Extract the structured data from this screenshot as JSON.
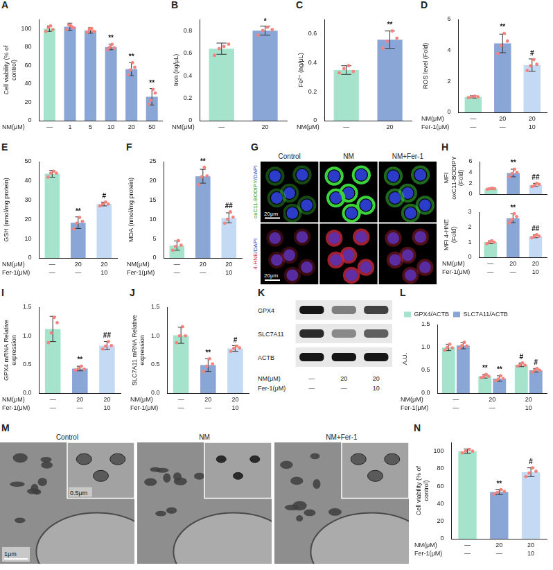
{
  "chart_data": [
    {
      "panel": "A",
      "type": "bar",
      "y_label": "Cell viability (% of control)",
      "categories": [
        [
          "—"
        ],
        [
          "1"
        ],
        [
          "5"
        ],
        [
          "10"
        ],
        [
          "20"
        ],
        [
          "50"
        ]
      ],
      "row_labels": [
        "NM(μM)"
      ],
      "values": [
        100,
        102,
        98,
        80,
        56,
        26
      ],
      "errors": [
        3,
        4,
        3,
        3,
        7,
        9
      ],
      "points": [
        [
          97,
          101,
          103,
          99
        ],
        [
          99,
          104,
          103,
          101
        ],
        [
          96,
          99,
          100,
          97
        ],
        [
          77,
          80,
          83,
          79
        ],
        [
          50,
          55,
          63,
          58
        ],
        [
          18,
          22,
          34,
          30
        ]
      ],
      "annotations": [
        "",
        "",
        "",
        "**",
        "**",
        "**"
      ],
      "colors": [
        "#a6e3cc",
        "#8aa6d6",
        "#8aa6d6",
        "#8aa6d6",
        "#8aa6d6",
        "#8aa6d6"
      ],
      "ylim": [
        0,
        110
      ],
      "yticks": [
        0,
        20,
        40,
        60,
        80,
        100
      ],
      "grid": false
    },
    {
      "panel": "B",
      "type": "bar",
      "y_label": "Iron (ng/μL)",
      "categories": [
        [
          "—"
        ],
        [
          "20"
        ]
      ],
      "row_labels": [
        "NM(μM)"
      ],
      "values": [
        0.64,
        0.8
      ],
      "errors": [
        0.05,
        0.04
      ],
      "points": [
        [
          0.58,
          0.64,
          0.66,
          0.68
        ],
        [
          0.76,
          0.8,
          0.83,
          0.81
        ]
      ],
      "annotations": [
        "",
        "*"
      ],
      "colors": [
        "#a6e3cc",
        "#8aa6d6"
      ],
      "ylim": [
        0,
        0.9
      ],
      "yticks": [
        0,
        0.2,
        0.4,
        0.6,
        0.8
      ],
      "grid": false
    },
    {
      "panel": "C",
      "type": "bar",
      "y_label": "Fe²⁺ (ng/μL)",
      "categories": [
        [
          "—"
        ],
        [
          "20"
        ]
      ],
      "row_labels": [
        "NM(μM)"
      ],
      "values": [
        0.35,
        0.56
      ],
      "errors": [
        0.03,
        0.06
      ],
      "points": [
        [
          0.33,
          0.36,
          0.38,
          0.34
        ],
        [
          0.5,
          0.55,
          0.62,
          0.57
        ]
      ],
      "annotations": [
        "",
        "**"
      ],
      "colors": [
        "#a6e3cc",
        "#8aa6d6"
      ],
      "ylim": [
        0,
        0.7
      ],
      "yticks": [
        0,
        0.2,
        0.4,
        0.6
      ],
      "grid": false
    },
    {
      "panel": "D",
      "type": "bar",
      "y_label": "ROS level (Fold)",
      "categories": [
        [
          "—",
          "—"
        ],
        [
          "20",
          "—"
        ],
        [
          "20",
          "10"
        ]
      ],
      "row_labels": [
        "NM(μM)",
        "Fer-1(μM)"
      ],
      "values": [
        1.0,
        4.45,
        3.05
      ],
      "errors": [
        0.08,
        0.6,
        0.4
      ],
      "points": [
        [
          0.95,
          1.0,
          1.05,
          1.0
        ],
        [
          3.8,
          4.3,
          5.1,
          4.6
        ],
        [
          2.7,
          3.0,
          3.4,
          3.1
        ]
      ],
      "annotations": [
        "",
        "**",
        "#"
      ],
      "colors": [
        "#a6e3cc",
        "#8aa6d6",
        "#c4d9f3"
      ],
      "ylim": [
        0,
        6
      ],
      "yticks": [
        0,
        2,
        4,
        6
      ],
      "grid": false
    },
    {
      "panel": "E",
      "type": "bar",
      "y_label": "GSH (nmol/mg protein)",
      "categories": [
        [
          "—",
          "—"
        ],
        [
          "20",
          "—"
        ],
        [
          "20",
          "10"
        ]
      ],
      "row_labels": [
        "NM(μM)",
        "Fer-1(μM)"
      ],
      "values": [
        43.7,
        18.3,
        28
      ],
      "errors": [
        1.8,
        3,
        1
      ],
      "points": [
        [
          42,
          44,
          45,
          44
        ],
        [
          15,
          18,
          21,
          19
        ],
        [
          27,
          28,
          29,
          28
        ]
      ],
      "annotations": [
        "",
        "**",
        "#"
      ],
      "colors": [
        "#a6e3cc",
        "#8aa6d6",
        "#c4d9f3"
      ],
      "ylim": [
        0,
        50
      ],
      "yticks": [
        0,
        10,
        20,
        30,
        40,
        50
      ],
      "grid": false
    },
    {
      "panel": "F",
      "type": "bar",
      "y_label": "MDA (nmol/mg protein)",
      "categories": [
        [
          "—",
          "—"
        ],
        [
          "20",
          "—"
        ],
        [
          "20",
          "10"
        ]
      ],
      "row_labels": [
        "NM(μM)",
        "Fer-1(μM)"
      ],
      "values": [
        3.2,
        21.2,
        10.4
      ],
      "errors": [
        1.2,
        1.8,
        1.3
      ],
      "points": [
        [
          2,
          3,
          4.5,
          3.3
        ],
        [
          19,
          21,
          23.5,
          21.3
        ],
        [
          9,
          10,
          12,
          10.6
        ]
      ],
      "annotations": [
        "",
        "**",
        "##"
      ],
      "colors": [
        "#a6e3cc",
        "#8aa6d6",
        "#c4d9f3"
      ],
      "ylim": [
        0,
        25
      ],
      "yticks": [
        0,
        5,
        10,
        15,
        20,
        25
      ],
      "grid": false
    },
    {
      "panel": "H",
      "type": "bar",
      "y_label": "MFI oxC11-BODIPY (Fold)",
      "tick_labels": "y",
      "values": [
        1.0,
        3.9,
        1.7
      ],
      "errors": [
        0.1,
        0.7,
        0.3
      ],
      "points": [
        [
          0.9,
          1.0,
          1.1,
          1.0
        ],
        [
          3.2,
          3.8,
          4.6,
          4.0
        ],
        [
          1.4,
          1.6,
          2.0,
          1.8
        ]
      ],
      "annotations": [
        "",
        "**",
        "##"
      ],
      "colors": [
        "#a6e3cc",
        "#8aa6d6",
        "#c4d9f3"
      ],
      "ylim": [
        0,
        6
      ],
      "yticks": [
        0,
        2,
        4,
        6
      ],
      "grid": false
    },
    {
      "type": "bar",
      "y_label": "MFI 4-HNE (Fold)",
      "categories": [
        [
          "—",
          "—"
        ],
        [
          "20",
          "—"
        ],
        [
          "20",
          "10"
        ]
      ],
      "row_labels": [
        "NM(μM)",
        "Fer-1(μM)"
      ],
      "values": [
        1.0,
        2.6,
        1.4
      ],
      "errors": [
        0.1,
        0.3,
        0.1
      ],
      "points": [
        [
          0.9,
          1.0,
          1.1,
          1.0
        ],
        [
          2.3,
          2.5,
          2.9,
          2.7
        ],
        [
          1.3,
          1.4,
          1.5,
          1.4
        ]
      ],
      "annotations": [
        "",
        "**",
        "##"
      ],
      "colors": [
        "#a6e3cc",
        "#8aa6d6",
        "#c4d9f3"
      ],
      "ylim": [
        0,
        3
      ],
      "yticks": [
        0,
        1,
        2,
        3
      ],
      "grid": false
    },
    {
      "panel": "I",
      "type": "bar",
      "y_label": "GPX4 mRNA Relative expression",
      "categories": [
        [
          "—",
          "—"
        ],
        [
          "20",
          "—"
        ],
        [
          "20",
          "10"
        ]
      ],
      "row_labels": [
        "NM(μM)",
        "Fer-1(μM)"
      ],
      "values": [
        1.12,
        0.43,
        0.83
      ],
      "errors": [
        0.22,
        0.04,
        0.07
      ],
      "points": [
        [
          0.88,
          1.05,
          1.32,
          1.23
        ],
        [
          0.4,
          0.43,
          0.47,
          0.42
        ],
        [
          0.77,
          0.82,
          0.9,
          0.83
        ]
      ],
      "annotations": [
        "",
        "**",
        "##"
      ],
      "colors": [
        "#a6e3cc",
        "#8aa6d6",
        "#c4d9f3"
      ],
      "ylim": [
        0,
        1.5
      ],
      "yticks": [
        {
          "value": 0,
          "label": "0.0"
        },
        0.5,
        {
          "value": 1,
          "label": "1.0"
        },
        1.5
      ],
      "grid": false
    },
    {
      "panel": "J",
      "type": "bar",
      "y_label": "SLC7A11 mRNA Relative expression",
      "categories": [
        [
          "—",
          "—"
        ],
        [
          "20",
          "—"
        ],
        [
          "20",
          "10"
        ]
      ],
      "row_labels": [
        "NM(μM)",
        "Fer-1(μM)"
      ],
      "values": [
        1.01,
        0.49,
        0.78
      ],
      "errors": [
        0.14,
        0.11,
        0.05
      ],
      "points": [
        [
          0.88,
          1.0,
          1.16,
          1.0
        ],
        [
          0.38,
          0.47,
          0.6,
          0.51
        ],
        [
          0.73,
          0.78,
          0.82,
          0.79
        ]
      ],
      "annotations": [
        "",
        "**",
        "#"
      ],
      "colors": [
        "#a6e3cc",
        "#8aa6d6",
        "#c4d9f3"
      ],
      "ylim": [
        0,
        1.5
      ],
      "yticks": [
        {
          "value": 0,
          "label": "0.0"
        },
        0.5,
        {
          "value": 1,
          "label": "1.0"
        },
        1.5
      ],
      "grid": false
    },
    {
      "panel": "L",
      "type": "bar",
      "y_label": "A.U.",
      "legend": "top",
      "categories": [
        [
          "—",
          "—"
        ],
        [
          "20",
          "—"
        ],
        [
          "20",
          "10"
        ]
      ],
      "row_labels": [
        "NM(μM)",
        "Fer-1(μM)"
      ],
      "series": [
        {
          "name": "GPX4/ACTB",
          "color": "#a6e3cc",
          "values": [
            1.0,
            0.37,
            0.62
          ],
          "errors": [
            0.07,
            0.04,
            0.04
          ],
          "points": [
            [
              0.94,
              1.0,
              1.07,
              0.99
            ],
            [
              0.34,
              0.36,
              0.41,
              0.37
            ],
            [
              0.59,
              0.62,
              0.66,
              0.61
            ]
          ],
          "annotations": [
            "",
            "**",
            "#"
          ]
        },
        {
          "name": "SLC7A11/ACTB",
          "color": "#8aa6d6",
          "values": [
            1.04,
            0.32,
            0.5
          ],
          "errors": [
            0.07,
            0.06,
            0.04
          ],
          "points": [
            [
              0.98,
              1.04,
              1.11,
              1.03
            ],
            [
              0.27,
              0.31,
              0.38,
              0.32
            ],
            [
              0.46,
              0.5,
              0.54,
              0.5
            ]
          ],
          "annotations": [
            "",
            "**",
            "#"
          ]
        }
      ],
      "ylim": [
        0,
        1.5
      ],
      "yticks": [
        {
          "value": 0,
          "label": "0.0"
        },
        0.5,
        {
          "value": 1,
          "label": "1.0"
        },
        1.5
      ],
      "grid": false
    },
    {
      "panel": "N",
      "type": "bar",
      "y_label": "Cell viability (% of control)",
      "categories": [
        [
          "—",
          "—"
        ],
        [
          "20",
          "—"
        ],
        [
          "20",
          "10"
        ]
      ],
      "row_labels": [
        "NM(μM)",
        "Fer-1(μM)"
      ],
      "values": [
        100,
        53.5,
        76
      ],
      "errors": [
        2.5,
        3,
        5
      ],
      "points": [
        [
          98,
          100,
          102,
          100
        ],
        [
          51,
          53,
          56,
          54
        ],
        [
          71,
          75,
          81,
          77
        ]
      ],
      "annotations": [
        "",
        "**",
        "#"
      ],
      "colors": [
        "#a6e3cc",
        "#8aa6d6",
        "#c4d9f3"
      ],
      "ylim": [
        0,
        110
      ],
      "yticks": [
        0,
        20,
        40,
        60,
        80,
        100
      ],
      "grid": false
    }
  ],
  "figure_panels": [
    {
      "panel": "G",
      "type": "fluorescence_micrographs",
      "columns": [
        "Control",
        "NM",
        "NM+Fer-1"
      ],
      "rows": [
        "oxC11-BODIPY/DAPI",
        "4-HNE/DAPI"
      ],
      "scale_bar": "20μm"
    },
    {
      "panel": "K",
      "type": "western_blot",
      "bands": [
        "GPX4",
        "SLC7A11",
        "ACTB"
      ],
      "categories": [
        [
          "—",
          "—"
        ],
        [
          "20",
          "—"
        ],
        [
          "20",
          "10"
        ]
      ],
      "row_labels": [
        "NM(μM)",
        "Fer-1(μM)"
      ]
    },
    {
      "panel": "M",
      "type": "electron_micrographs",
      "columns": [
        "Control",
        "NM",
        "NM+Fer-1"
      ],
      "scale_bar": "1μm",
      "inset_scale_bar": "0.5μm"
    }
  ]
}
